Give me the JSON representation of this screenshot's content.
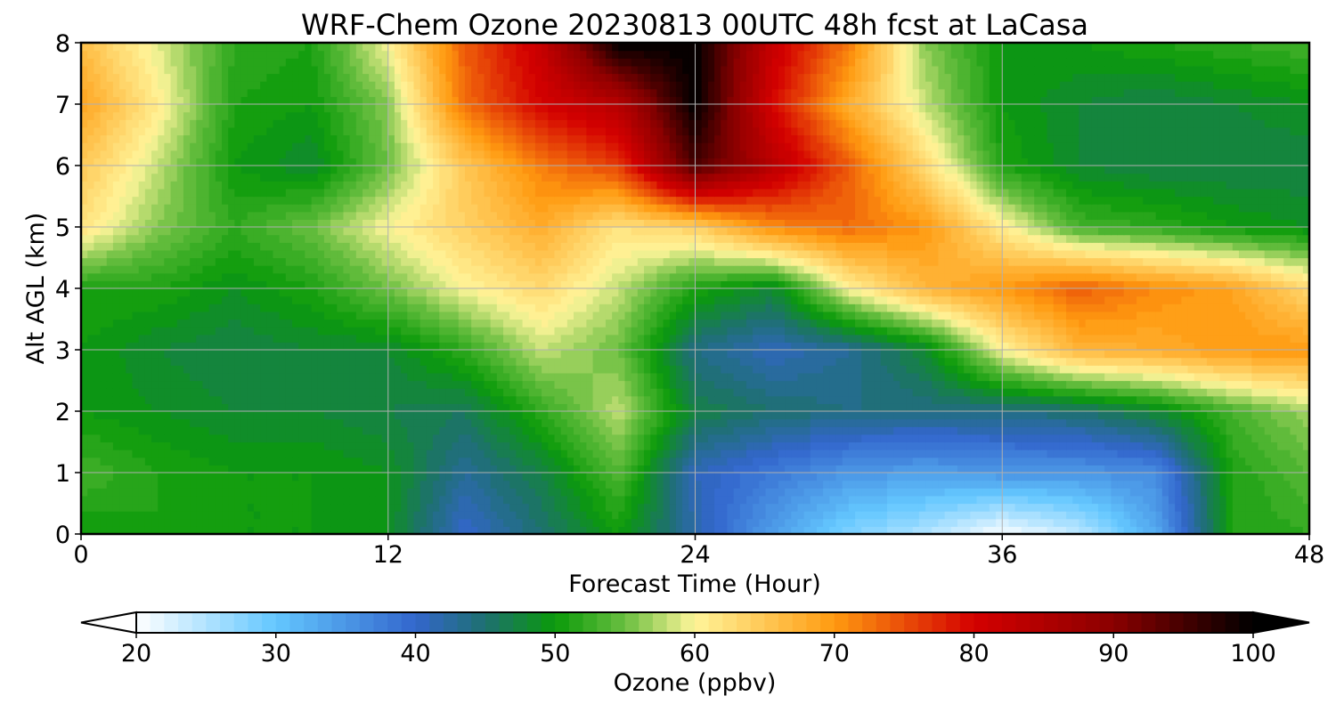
{
  "chart_data": {
    "type": "heatmap",
    "title": "WRF-Chem Ozone  20230813 00UTC 48h fcst at LaCasa",
    "xlabel": "Forecast Time (Hour)",
    "ylabel": "Alt AGL (km)",
    "xlim": [
      0,
      48
    ],
    "ylim": [
      0,
      8
    ],
    "x_ticks": [
      0,
      12,
      24,
      36,
      48
    ],
    "y_ticks": [
      0,
      1,
      2,
      3,
      4,
      5,
      6,
      7,
      8
    ],
    "grid": true,
    "x": [
      0,
      3,
      6,
      9,
      12,
      15,
      18,
      21,
      24,
      27,
      30,
      33,
      36,
      39,
      42,
      45,
      48
    ],
    "y": [
      0,
      1,
      2,
      3,
      4,
      5,
      6,
      7,
      8
    ],
    "z": [
      [
        50,
        51,
        50,
        50,
        49,
        40,
        45,
        50,
        42,
        34,
        28,
        25,
        20,
        24,
        33,
        51,
        52
      ],
      [
        53,
        51,
        50,
        50,
        49,
        43,
        47,
        54,
        41,
        38,
        35,
        34,
        35,
        35,
        36,
        51,
        54
      ],
      [
        50,
        49,
        48,
        48,
        47,
        46,
        52,
        58,
        47,
        45,
        44,
        44,
        44,
        45,
        48,
        53,
        57
      ],
      [
        50,
        48,
        47,
        48,
        48,
        52,
        58,
        55,
        44,
        41,
        43,
        48,
        60,
        67,
        68,
        70,
        70
      ],
      [
        51,
        51,
        49,
        51,
        55,
        60,
        63,
        58,
        51,
        48,
        60,
        67,
        70,
        74,
        71,
        69,
        63
      ],
      [
        62,
        56,
        52,
        55,
        60,
        64,
        68,
        62,
        64,
        71,
        73,
        70,
        61,
        53,
        52,
        50,
        49
      ],
      [
        65,
        58,
        50,
        48,
        55,
        65,
        72,
        76,
        95,
        84,
        74,
        63,
        51,
        48,
        47,
        47,
        47
      ],
      [
        69,
        61,
        51,
        50,
        56,
        73,
        80,
        84,
        100,
        80,
        68,
        58,
        50,
        48,
        47,
        48,
        49
      ],
      [
        66,
        59,
        52,
        51,
        60,
        74,
        82,
        100,
        100,
        82,
        72,
        56,
        50,
        50,
        51,
        52,
        53
      ]
    ],
    "colorbar": {
      "label": "Ozone  (ppbv)",
      "min": 20,
      "max": 100,
      "ticks": [
        20,
        30,
        40,
        50,
        60,
        70,
        80,
        90,
        100
      ],
      "extend": "both",
      "levels": 80
    },
    "colormap": [
      [
        20,
        "#ffffff"
      ],
      [
        30,
        "#63c7ff"
      ],
      [
        40,
        "#3366cc"
      ],
      [
        45,
        "#1e7070"
      ],
      [
        50,
        "#0a9a0a"
      ],
      [
        55,
        "#6abf40"
      ],
      [
        60,
        "#fff59a"
      ],
      [
        70,
        "#ff9a10"
      ],
      [
        80,
        "#d40000"
      ],
      [
        90,
        "#8a0000"
      ],
      [
        100,
        "#000000"
      ]
    ]
  }
}
